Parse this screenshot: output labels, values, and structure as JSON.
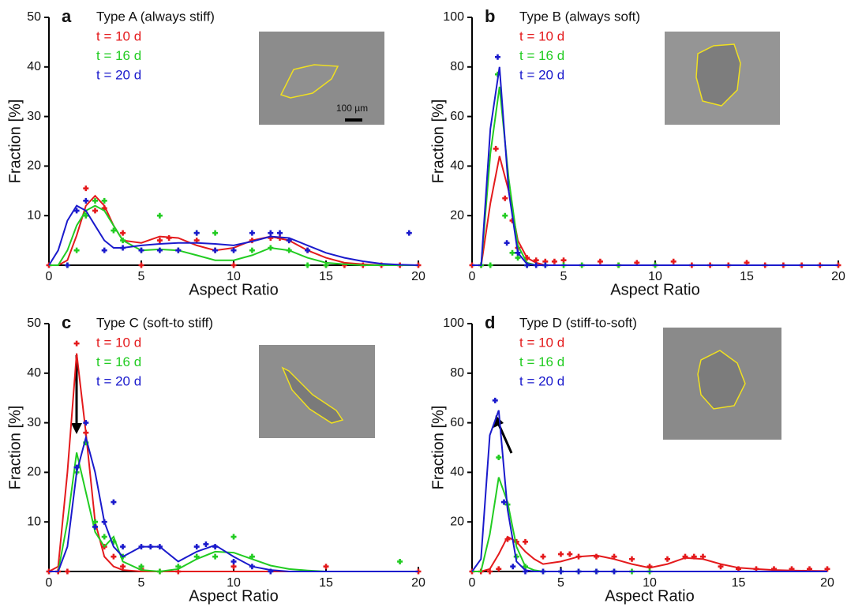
{
  "chart_data": [
    {
      "type": "scatter",
      "label": "a",
      "title": "Type A (always stiff)",
      "x_label": "Aspect Ratio",
      "y_label": "Fraction [%]",
      "inset_scale": "100 µm",
      "xlim": [
        0,
        20
      ],
      "ylim": [
        0,
        50
      ],
      "xticks": [
        0,
        5,
        10,
        15,
        20
      ],
      "yticks": [
        10,
        20,
        30,
        40,
        50
      ],
      "fit_x": [
        0,
        0.5,
        1,
        1.5,
        2,
        2.5,
        3,
        3.5,
        4,
        5,
        6,
        7,
        8,
        9,
        10,
        11,
        12,
        13,
        14,
        15,
        16,
        17,
        18,
        19,
        20
      ],
      "series": [
        {
          "name": "t = 10 d",
          "color": "#e41a1c",
          "x": [
            0,
            2,
            2.5,
            3,
            4,
            5,
            6,
            6.5,
            7,
            8,
            9,
            10,
            11,
            12,
            12.5,
            13,
            14,
            15,
            16,
            17,
            18,
            19,
            20
          ],
          "values": [
            0,
            15.5,
            11,
            11.5,
            6.5,
            0,
            5,
            5.5,
            3,
            5,
            3,
            0,
            5,
            5.5,
            5.5,
            5,
            3,
            0,
            0,
            0,
            0,
            0,
            0
          ],
          "fit": [
            0,
            0,
            1,
            6,
            12,
            14,
            12,
            8,
            5,
            4.5,
            5.8,
            5.5,
            4,
            3,
            3.5,
            5,
            5.8,
            5,
            3,
            1.5,
            0.5,
            0.2,
            0,
            0,
            0
          ]
        },
        {
          "name": "t = 16 d",
          "color": "#22cc22",
          "x": [
            1,
            1.5,
            2,
            2.5,
            3,
            3.5,
            4,
            5,
            6,
            7,
            8,
            9,
            11,
            12,
            13,
            14,
            15
          ],
          "values": [
            0,
            3,
            10,
            13,
            13,
            7,
            5,
            3,
            10,
            3,
            6.5,
            6.5,
            3,
            3.5,
            3,
            0,
            0
          ],
          "fit": [
            0,
            0,
            3,
            8,
            11,
            12,
            11,
            8,
            5,
            3,
            3.2,
            3,
            2,
            1,
            1,
            2,
            3.5,
            3,
            1.5,
            0.5,
            0.2,
            0,
            0,
            0,
            0
          ]
        },
        {
          "name": "t = 20 d",
          "color": "#1a1acc",
          "x": [
            1,
            1.5,
            2,
            3,
            4,
            5,
            6,
            7,
            8,
            9,
            10,
            11,
            12,
            12.5,
            13,
            14,
            19.5
          ],
          "values": [
            0,
            11,
            13,
            3,
            3.5,
            3,
            3,
            3,
            6.5,
            3,
            3,
            6.5,
            6.5,
            6.5,
            5,
            3,
            6.5
          ],
          "fit": [
            0,
            3,
            9,
            12,
            11,
            8,
            5,
            3.5,
            3.5,
            4,
            4.3,
            4.5,
            4.5,
            4.3,
            4,
            4.8,
            5.8,
            5.5,
            4,
            2.5,
            1.5,
            0.8,
            0.3,
            0.1,
            0
          ]
        }
      ]
    },
    {
      "type": "scatter",
      "label": "b",
      "title": "Type B (always soft)",
      "x_label": "Aspect Ratio",
      "y_label": "Fraction [%]",
      "xlim": [
        0,
        20
      ],
      "ylim": [
        0,
        100
      ],
      "xticks": [
        0,
        5,
        10,
        15,
        20
      ],
      "yticks": [
        20,
        40,
        60,
        80,
        100
      ],
      "fit_x": [
        0,
        0.5,
        1,
        1.5,
        2,
        2.5,
        3,
        3.5,
        4,
        5,
        6,
        7,
        8,
        9,
        10,
        11,
        12,
        13,
        14,
        15,
        16,
        17,
        18,
        19,
        20
      ],
      "series": [
        {
          "name": "t = 10 d",
          "color": "#e41a1c",
          "x": [
            0,
            0.5,
            1.3,
            1.8,
            2.2,
            2.5,
            3,
            3.5,
            4,
            4.5,
            5,
            6,
            7,
            8,
            9,
            10,
            11,
            12,
            13,
            14,
            15,
            16,
            17,
            18,
            19,
            20
          ],
          "values": [
            0,
            0,
            47,
            27,
            18,
            7,
            3,
            2,
            1.5,
            1.5,
            2,
            0,
            1.5,
            0,
            1,
            0,
            1.5,
            0,
            0,
            0,
            1,
            0,
            0,
            0,
            0,
            0
          ],
          "fit": [
            0,
            0,
            25,
            44,
            30,
            10,
            3,
            1,
            0,
            0,
            0,
            0,
            0,
            0,
            0,
            0,
            0,
            0,
            0,
            0,
            0,
            0,
            0,
            0,
            0
          ]
        },
        {
          "name": "t = 16 d",
          "color": "#22cc22",
          "x": [
            0.5,
            1,
            1.4,
            1.8,
            2.2,
            2.5,
            3,
            4,
            5,
            6,
            8,
            10
          ],
          "values": [
            0,
            0,
            77,
            20,
            5,
            3,
            0,
            0,
            0,
            0,
            0,
            0
          ],
          "fit": [
            0,
            0,
            45,
            72,
            35,
            8,
            1,
            0,
            0,
            0,
            0,
            0,
            0,
            0,
            0,
            0,
            0,
            0,
            0,
            0,
            0,
            0,
            0,
            0,
            0
          ]
        },
        {
          "name": "t = 20 d",
          "color": "#1a1acc",
          "x": [
            1.4,
            1.9,
            2.5,
            3,
            3.5,
            4
          ],
          "values": [
            84,
            9,
            5,
            0,
            0,
            0
          ],
          "fit": [
            0,
            0,
            55,
            80,
            30,
            5,
            0.5,
            0,
            0,
            0,
            0,
            0,
            0,
            0,
            0,
            0,
            0,
            0,
            0,
            0,
            0,
            0,
            0,
            0,
            0
          ]
        }
      ]
    },
    {
      "type": "scatter",
      "label": "c",
      "title": "Type C (soft-to stiff)",
      "x_label": "Aspect Ratio",
      "y_label": "Fraction [%]",
      "xlim": [
        0,
        20
      ],
      "ylim": [
        0,
        50
      ],
      "xticks": [
        0,
        5,
        10,
        15,
        20
      ],
      "yticks": [
        10,
        20,
        30,
        40,
        50
      ],
      "fit_x": [
        0,
        0.5,
        1,
        1.5,
        2,
        2.5,
        3,
        3.5,
        4,
        5,
        6,
        7,
        8,
        9,
        10,
        11,
        12,
        13,
        14,
        15,
        16,
        17,
        18,
        19,
        20
      ],
      "series": [
        {
          "name": "t = 10 d",
          "color": "#e41a1c",
          "x": [
            0,
            0.5,
            1,
            1.5,
            2,
            2.5,
            3,
            3.5,
            4,
            5,
            6,
            7,
            10,
            15,
            20
          ],
          "values": [
            0,
            0,
            0,
            46,
            28,
            10,
            5,
            3,
            1,
            0.5,
            0,
            0,
            1,
            1,
            0
          ],
          "fit": [
            0,
            1,
            20,
            44,
            28,
            10,
            3,
            1,
            0.3,
            0,
            0,
            0,
            0,
            0,
            0,
            0,
            0,
            0,
            0,
            0,
            0,
            0,
            0,
            0,
            0
          ]
        },
        {
          "name": "t = 16 d",
          "color": "#22cc22",
          "x": [
            1.5,
            2,
            2.5,
            3,
            3.5,
            4,
            5,
            6,
            7,
            8,
            9,
            10,
            11,
            19
          ],
          "values": [
            20,
            26,
            10,
            7,
            6,
            3,
            1,
            0,
            1,
            3,
            3,
            7,
            3,
            2
          ],
          "fit": [
            0,
            0,
            10,
            24,
            16,
            8,
            5,
            7,
            2,
            0.3,
            0,
            0.5,
            2.5,
            4,
            3.8,
            2.5,
            1.2,
            0.5,
            0.2,
            0,
            0,
            0,
            0,
            0,
            0
          ]
        },
        {
          "name": "t = 20 d",
          "color": "#1a1acc",
          "x": [
            1.5,
            2,
            2.5,
            3,
            3.5,
            4,
            5,
            5.5,
            6,
            8,
            8.5,
            9,
            10,
            11,
            12
          ],
          "values": [
            21,
            30,
            9,
            10,
            14,
            5,
            5,
            5,
            5,
            5,
            5.5,
            5,
            2,
            1,
            0
          ],
          "fit": [
            0,
            0,
            5,
            20,
            27,
            20,
            10,
            5,
            3,
            5,
            5,
            2,
            4,
            5.3,
            3,
            1,
            0.3,
            0,
            0,
            0,
            0,
            0,
            0,
            0,
            0
          ]
        }
      ]
    },
    {
      "type": "scatter",
      "label": "d",
      "title": "Type D (stiff-to-soft)",
      "x_label": "Aspect Ratio",
      "y_label": "Fraction [%]",
      "xlim": [
        0,
        20
      ],
      "ylim": [
        0,
        100
      ],
      "xticks": [
        0,
        5,
        10,
        15,
        20
      ],
      "yticks": [
        20,
        40,
        60,
        80,
        100
      ],
      "fit_x": [
        0,
        0.5,
        1,
        1.5,
        2,
        2.5,
        3,
        3.5,
        4,
        5,
        6,
        7,
        8,
        9,
        10,
        11,
        12,
        13,
        14,
        15,
        16,
        17,
        18,
        19,
        20
      ],
      "series": [
        {
          "name": "t = 10 d",
          "color": "#e41a1c",
          "x": [
            0,
            0.5,
            1,
            1.5,
            2,
            2.5,
            3,
            4,
            5,
            5.5,
            6,
            7,
            8,
            9,
            10,
            11,
            12,
            12.5,
            13,
            14,
            15,
            16,
            17,
            18,
            19,
            20
          ],
          "values": [
            0,
            0,
            0,
            1,
            13,
            12,
            12,
            6,
            7,
            7,
            6,
            6,
            6,
            5,
            2,
            5,
            6,
            6,
            6,
            2,
            1,
            1,
            1,
            1,
            1,
            1
          ],
          "fit": [
            0,
            0,
            1,
            7,
            14,
            12,
            8,
            5,
            3,
            4,
            6,
            6.5,
            5,
            3,
            1.5,
            3,
            5.5,
            5,
            3,
            1.5,
            1,
            0.6,
            0.4,
            0.3,
            0.2
          ]
        },
        {
          "name": "t = 16 d",
          "color": "#22cc22",
          "x": [
            1.5,
            2,
            2.5,
            3,
            4,
            5,
            6,
            7,
            8,
            9,
            10
          ],
          "values": [
            46,
            27,
            6,
            2,
            0,
            0,
            0,
            0,
            0,
            0,
            0
          ],
          "fit": [
            0,
            0,
            15,
            38,
            28,
            10,
            2,
            0.5,
            0,
            0,
            0,
            0,
            0,
            0,
            0,
            0,
            0,
            0,
            0,
            0,
            0,
            0,
            0,
            0,
            0
          ]
        },
        {
          "name": "t = 20 d",
          "color": "#1a1acc",
          "x": [
            1.3,
            1.8,
            2.3,
            3,
            4,
            5,
            6,
            7,
            8
          ],
          "values": [
            69,
            28,
            2,
            0,
            0,
            0,
            0,
            0,
            0
          ],
          "fit": [
            0,
            5,
            55,
            65,
            25,
            4,
            0.5,
            0,
            0,
            0,
            0,
            0,
            0,
            0,
            0,
            0,
            0,
            0,
            0,
            0,
            0,
            0,
            0,
            0,
            0
          ]
        }
      ]
    }
  ]
}
